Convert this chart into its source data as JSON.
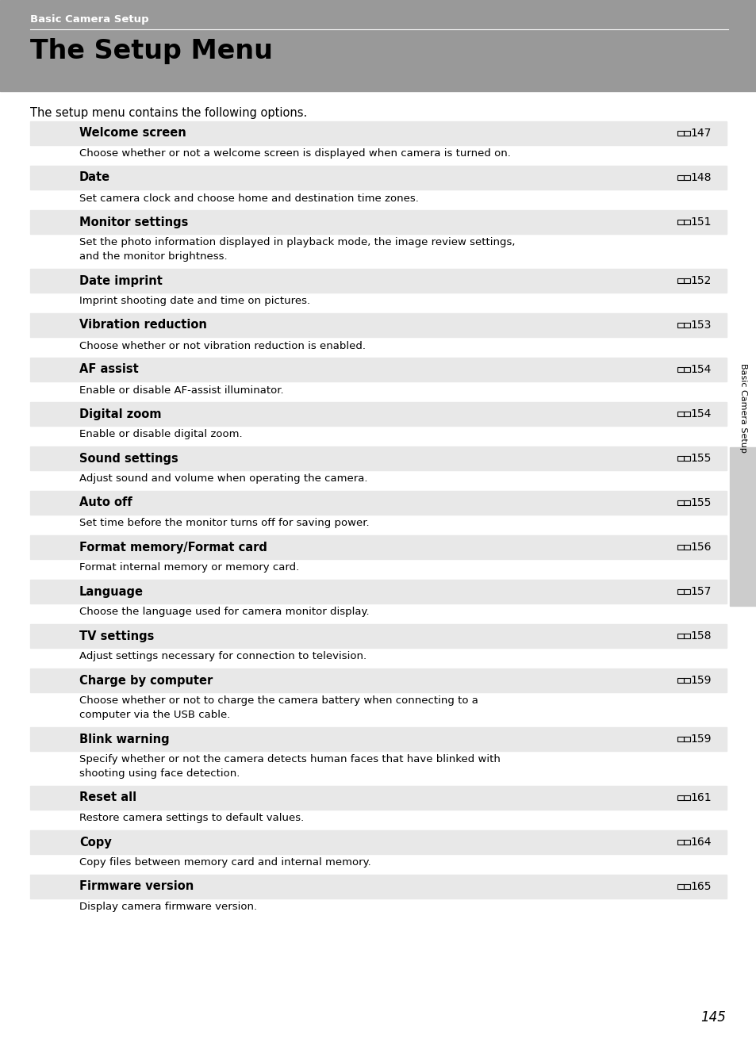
{
  "header_bg": "#999999",
  "header_text": "Basic Camera Setup",
  "title_text": "The Setup Menu",
  "intro_text": "The setup menu contains the following options.",
  "bg_color": "#ffffff",
  "sidebar_text": "Basic Camera Setup",
  "sidebar_bg": "#cccccc",
  "page_number": "145",
  "row_bg": "#e8e8e8",
  "items": [
    {
      "name": "Welcome screen",
      "page": "147",
      "desc": "Choose whether or not a welcome screen is displayed when camera is turned on.",
      "desc_lines": 1
    },
    {
      "name": "Date",
      "page": "148",
      "desc": "Set camera clock and choose home and destination time zones.",
      "desc_lines": 1
    },
    {
      "name": "Monitor settings",
      "page": "151",
      "desc": "Set the photo information displayed in playback mode, the image review settings,\nand the monitor brightness.",
      "desc_lines": 2
    },
    {
      "name": "Date imprint",
      "page": "152",
      "desc": "Imprint shooting date and time on pictures.",
      "desc_lines": 1
    },
    {
      "name": "Vibration reduction",
      "page": "153",
      "desc": "Choose whether or not vibration reduction is enabled.",
      "desc_lines": 1
    },
    {
      "name": "AF assist",
      "page": "154",
      "desc": "Enable or disable AF-assist illuminator.",
      "desc_lines": 1
    },
    {
      "name": "Digital zoom",
      "page": "154",
      "desc": "Enable or disable digital zoom.",
      "desc_lines": 1
    },
    {
      "name": "Sound settings",
      "page": "155",
      "desc": "Adjust sound and volume when operating the camera.",
      "desc_lines": 1
    },
    {
      "name": "Auto off",
      "page": "155",
      "desc": "Set time before the monitor turns off for saving power.",
      "desc_lines": 1
    },
    {
      "name": "Format memory/Format card",
      "page": "156",
      "desc": "Format internal memory or memory card.",
      "desc_lines": 1
    },
    {
      "name": "Language",
      "page": "157",
      "desc": "Choose the language used for camera monitor display.",
      "desc_lines": 1
    },
    {
      "name": "TV settings",
      "page": "158",
      "desc": "Adjust settings necessary for connection to television.",
      "desc_lines": 1
    },
    {
      "name": "Charge by computer",
      "page": "159",
      "desc": "Choose whether or not to charge the camera battery when connecting to a\ncomputer via the USB cable.",
      "desc_lines": 2
    },
    {
      "name": "Blink warning",
      "page": "159",
      "desc": "Specify whether or not the camera detects human faces that have blinked with\nshooting using face detection.",
      "desc_lines": 2
    },
    {
      "name": "Reset all",
      "page": "161",
      "desc": "Restore camera settings to default values.",
      "desc_lines": 1
    },
    {
      "name": "Copy",
      "page": "164",
      "desc": "Copy files between memory card and internal memory.",
      "desc_lines": 1
    },
    {
      "name": "Firmware version",
      "page": "165",
      "desc": "Display camera firmware version.",
      "desc_lines": 1
    }
  ]
}
